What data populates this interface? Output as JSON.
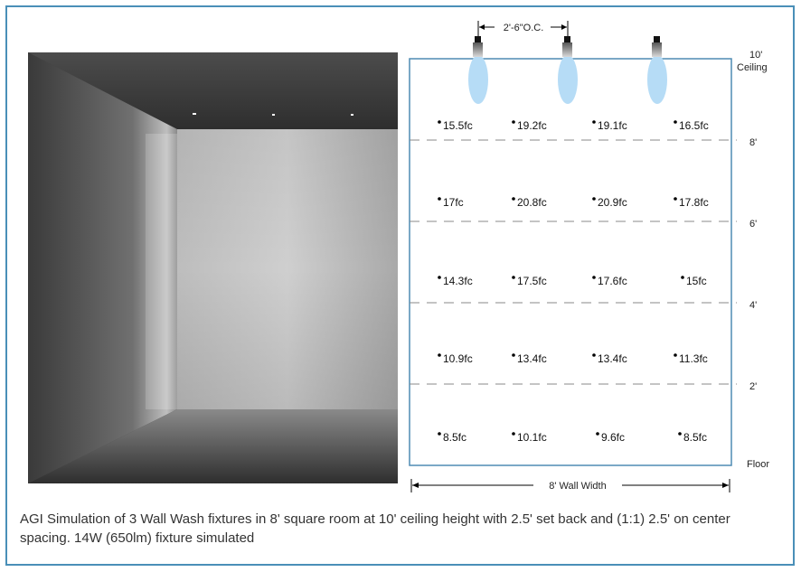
{
  "diagram": {
    "spacing_label": "2'-6\"O.C.",
    "ceiling_height": "10'",
    "ceiling_word": "Ceiling",
    "floor_label": "Floor",
    "width_label": "8' Wall Width",
    "height_markers": [
      "8'",
      "6'",
      "4'",
      "2'"
    ],
    "fixture_count": 3,
    "readings": [
      [
        "15.5fc",
        "19.2fc",
        "19.1fc",
        "16.5fc"
      ],
      [
        "17fc",
        "20.8fc",
        "20.9fc",
        "17.8fc"
      ],
      [
        "14.3fc",
        "17.5fc",
        "17.6fc",
        "15fc"
      ],
      [
        "10.9fc",
        "13.4fc",
        "13.4fc",
        "11.3fc"
      ],
      [
        "8.5fc",
        "10.1fc",
        "9.6fc",
        "8.5fc"
      ]
    ],
    "colors": {
      "frame": "#4a8fb8",
      "beam": "#b6dcf6",
      "wall_outline": "#4f8cb4"
    }
  },
  "caption": "AGI Simulation of 3 Wall Wash fixtures in 8' square room at 10' ceiling height with 2.5' set back and (1:1) 2.5' on center spacing. 14W (650lm) fixture simulated"
}
